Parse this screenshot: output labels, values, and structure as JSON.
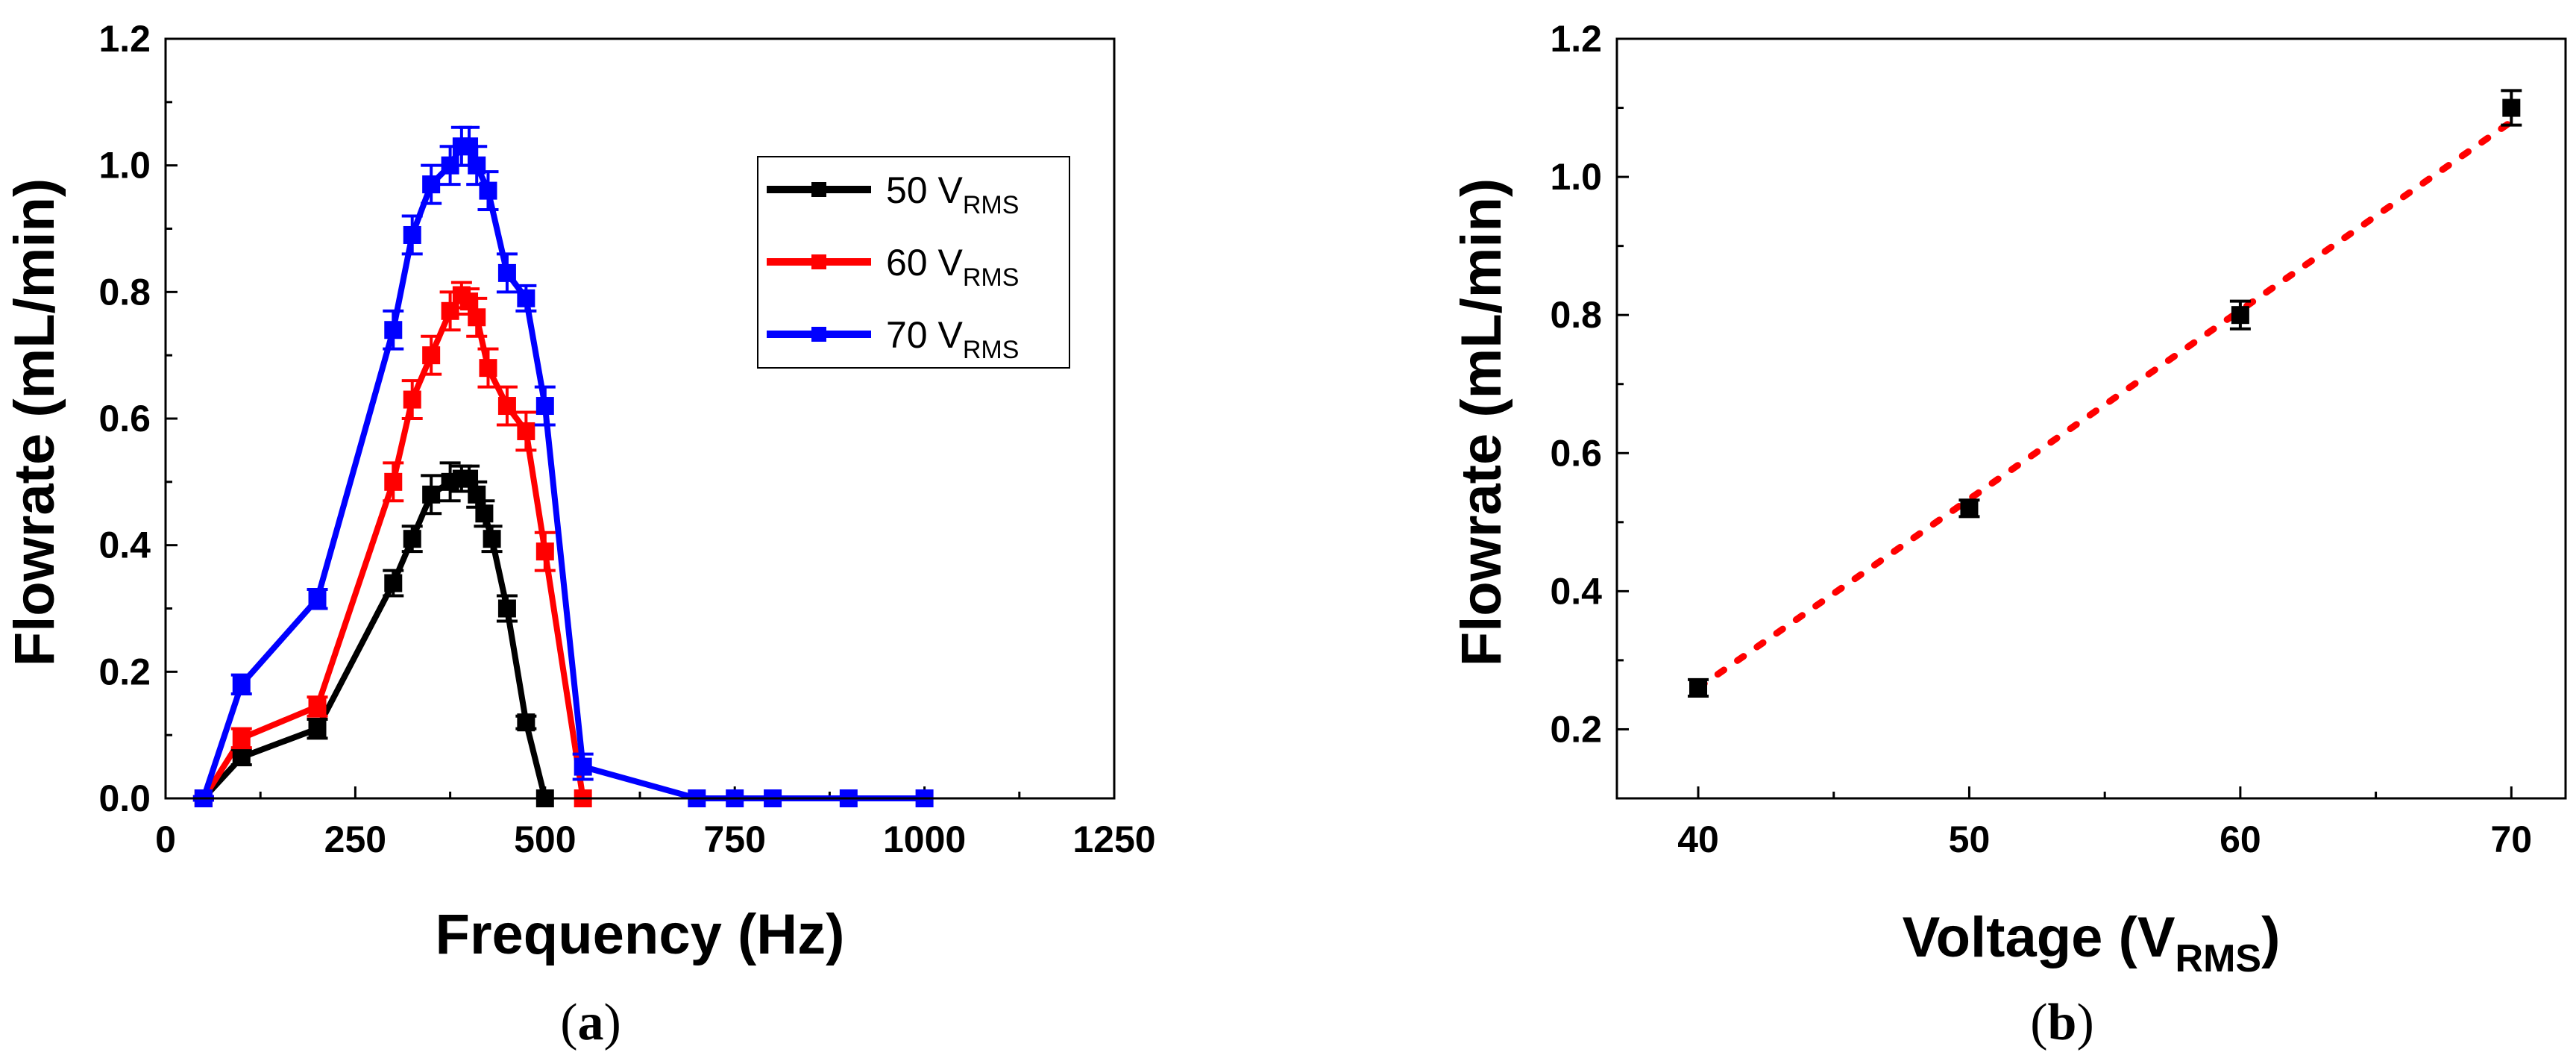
{
  "chart_data": [
    {
      "type": "line",
      "panel_label": "a",
      "caption_open": "(",
      "caption_close": ")",
      "xlabel": "Frequency (Hz)",
      "ylabel": "Flowrate (mL/min)",
      "xlim": [
        0,
        1250
      ],
      "ylim": [
        0,
        1.2
      ],
      "xticks": [
        "0",
        "250",
        "500",
        "750",
        "1000",
        "1250"
      ],
      "yticks": [
        "0.0",
        "0.2",
        "0.4",
        "0.6",
        "0.8",
        "1.0",
        "1.2"
      ],
      "legend_position": "top-right",
      "series": [
        {
          "name": "50 V",
          "subscript": "RMS",
          "color": "#000000",
          "x": [
            50,
            100,
            200,
            300,
            325,
            350,
            375,
            390,
            400,
            410,
            420,
            430,
            450,
            475,
            500
          ],
          "y": [
            0.0,
            0.065,
            0.11,
            0.34,
            0.41,
            0.48,
            0.5,
            0.505,
            0.505,
            0.48,
            0.45,
            0.41,
            0.3,
            0.12,
            0.0
          ],
          "yerr": [
            0.003,
            0.012,
            0.015,
            0.02,
            0.02,
            0.03,
            0.03,
            0.02,
            0.02,
            0.02,
            0.02,
            0.02,
            0.02,
            0.01,
            0.0
          ]
        },
        {
          "name": "60 V",
          "subscript": "RMS",
          "color": "#ff0000",
          "x": [
            50,
            100,
            200,
            300,
            325,
            350,
            375,
            390,
            400,
            410,
            425,
            450,
            475,
            500,
            550
          ],
          "y": [
            0.0,
            0.095,
            0.145,
            0.5,
            0.63,
            0.7,
            0.77,
            0.795,
            0.785,
            0.76,
            0.68,
            0.62,
            0.58,
            0.39,
            0.0
          ],
          "yerr": [
            0.003,
            0.015,
            0.015,
            0.03,
            0.03,
            0.03,
            0.03,
            0.02,
            0.02,
            0.03,
            0.03,
            0.03,
            0.03,
            0.03,
            0.0
          ]
        },
        {
          "name": "70 V",
          "subscript": "RMS",
          "color": "#0000ff",
          "x": [
            50,
            100,
            200,
            300,
            325,
            350,
            375,
            390,
            400,
            410,
            425,
            450,
            475,
            500,
            550,
            700,
            750,
            800,
            900,
            1000
          ],
          "y": [
            0.0,
            0.18,
            0.315,
            0.74,
            0.89,
            0.97,
            1.0,
            1.03,
            1.03,
            1.0,
            0.96,
            0.83,
            0.79,
            0.62,
            0.05,
            0.0,
            0.0,
            0.0,
            0.0,
            0.0
          ],
          "yerr": [
            0.003,
            0.015,
            0.015,
            0.03,
            0.03,
            0.03,
            0.03,
            0.03,
            0.03,
            0.03,
            0.03,
            0.03,
            0.02,
            0.03,
            0.02,
            0.0,
            0.0,
            0.0,
            0.0,
            0.0
          ]
        }
      ]
    },
    {
      "type": "scatter",
      "panel_label": "b",
      "caption_open": "(",
      "caption_close": ")",
      "xlabel": "Voltage (V",
      "xlabel_subscript": "RMS",
      "xlabel_close": ")",
      "ylabel": "Flowrate (mL/min)",
      "xlim": [
        37,
        72
      ],
      "ylim": [
        0.1,
        1.2
      ],
      "xticks": [
        "40",
        "50",
        "60",
        "70"
      ],
      "yticks": [
        "0.2",
        "0.4",
        "0.6",
        "0.8",
        "1.0",
        "1.2"
      ],
      "points": {
        "x": [
          40,
          50,
          60,
          70
        ],
        "y": [
          0.26,
          0.52,
          0.8,
          1.1
        ],
        "yerr": [
          0.012,
          0.012,
          0.02,
          0.025
        ],
        "color": "#000000"
      },
      "fit_line": {
        "x": [
          40,
          70
        ],
        "y": [
          0.26,
          1.08
        ],
        "color": "#ff0000",
        "style": "dotted"
      }
    }
  ]
}
